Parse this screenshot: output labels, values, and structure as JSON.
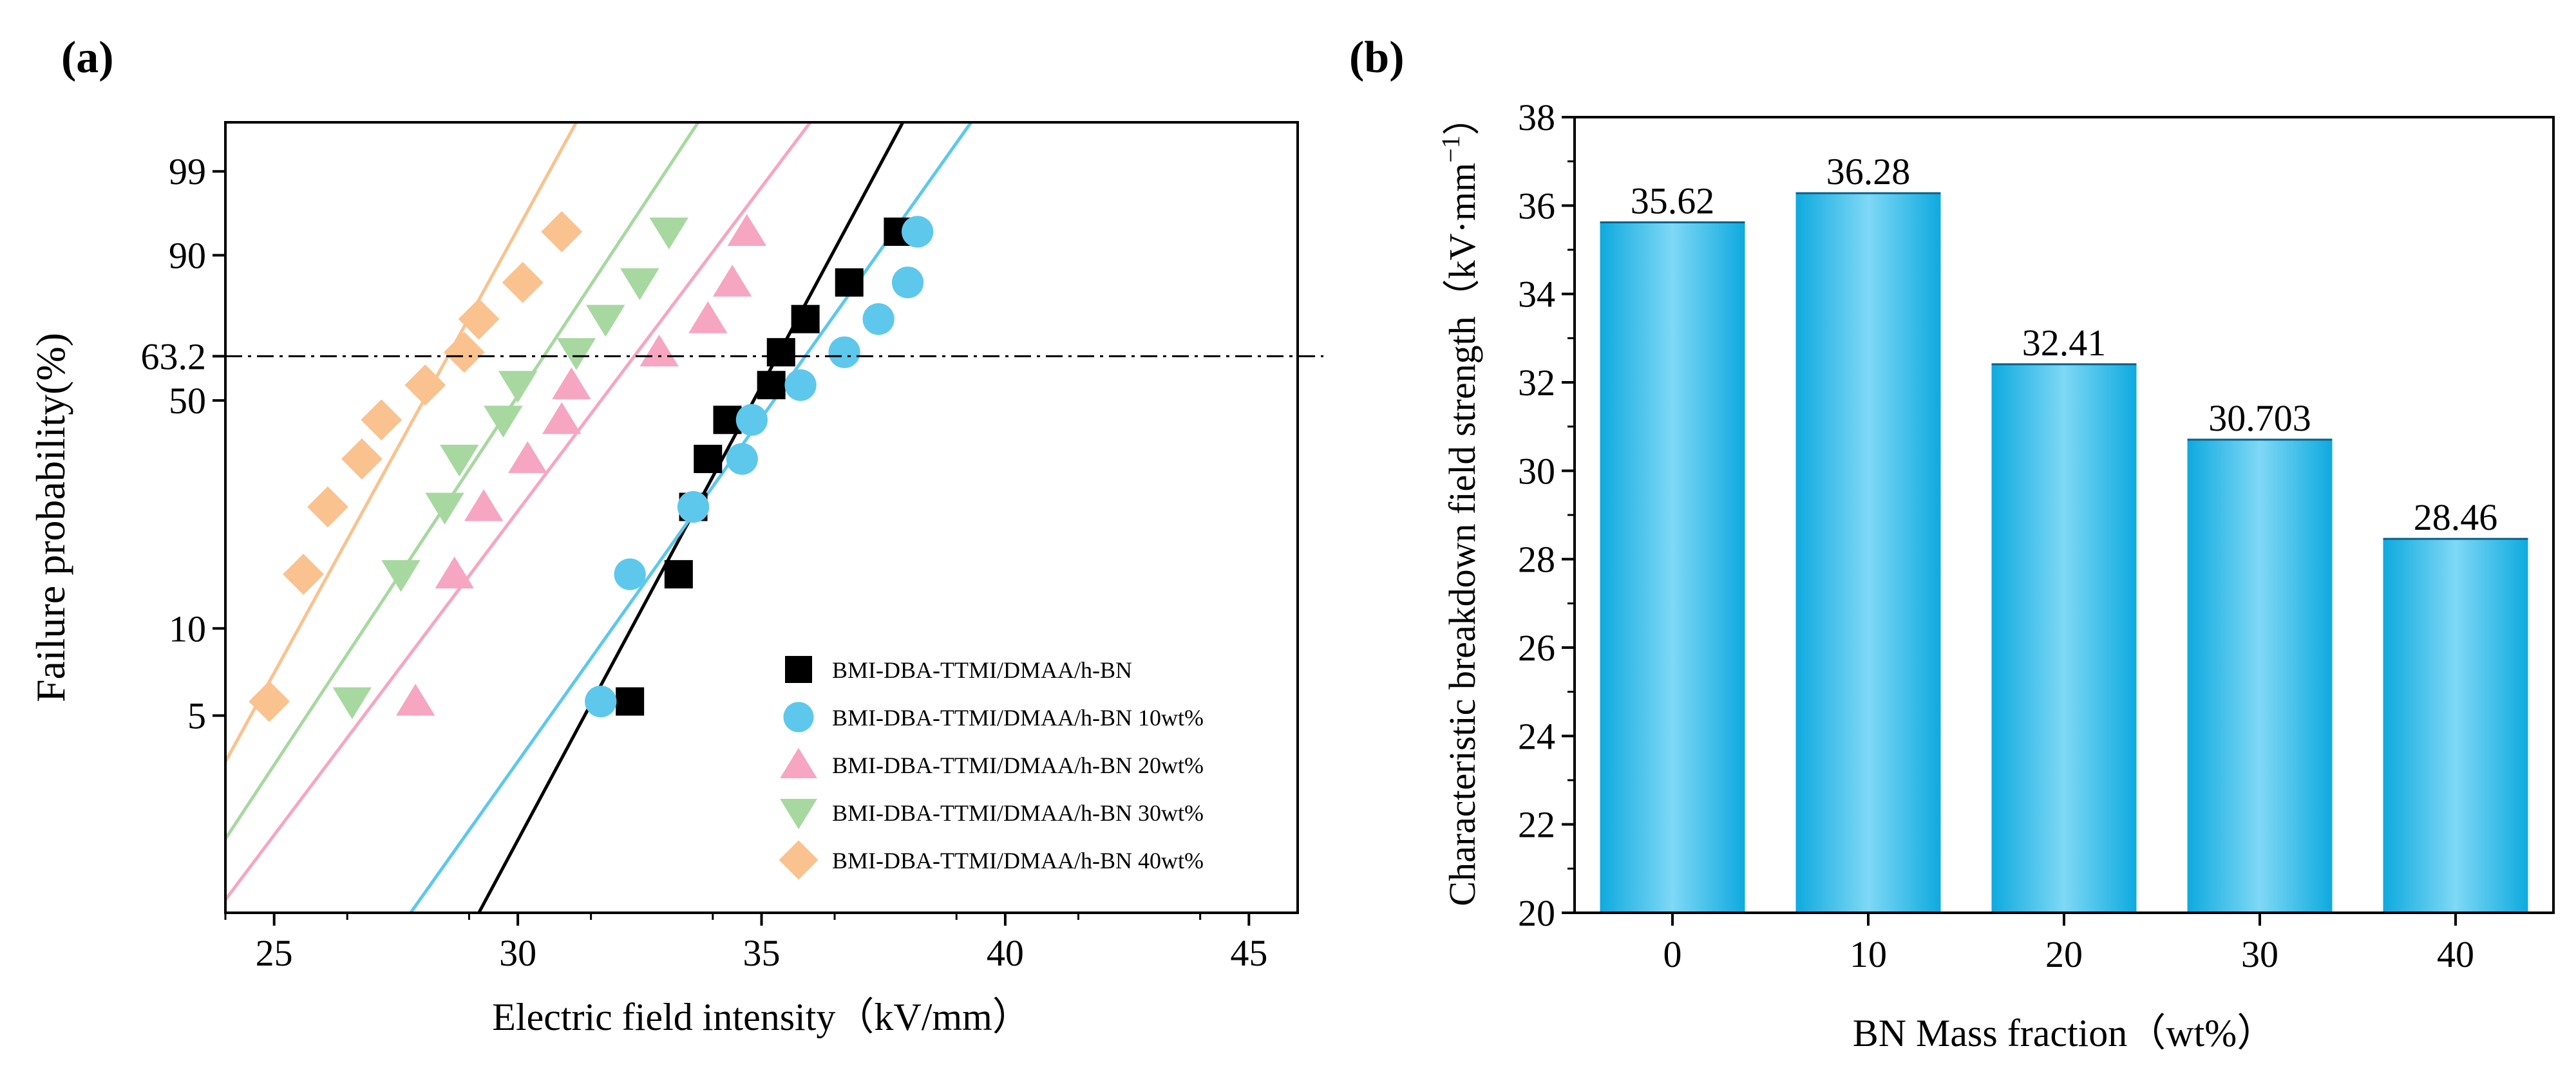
{
  "chart_data": [
    {
      "type": "scatter",
      "panel_label": "(a)",
      "xlabel": "Electric field intensity（kV/mm）",
      "ylabel": "Failure probability(%)",
      "xlim": [
        24,
        46
      ],
      "xticks": [
        25,
        30,
        35,
        40,
        45
      ],
      "ytick_labels": [
        "5",
        "10",
        "50",
        "63.2",
        "90",
        "99"
      ],
      "ytick_values": [
        5,
        10,
        50,
        63.2,
        90,
        99
      ],
      "reference_line": 63.2,
      "grid": false,
      "legend_position": "lower-right",
      "series": [
        {
          "name": "BMI-DBA-TTMI/DMAA/h-BN",
          "marker": "square",
          "color": "#000000",
          "x": [
            32.3,
            33.3,
            33.6,
            33.9,
            34.3,
            35.2,
            35.4,
            35.9,
            36.8,
            37.8
          ],
          "y": [
            5.6,
            15.2,
            25.0,
            34.8,
            44.6,
            54.5,
            64.4,
            74.3,
            84.1,
            93.9
          ],
          "fit": [
            [
              29.2,
              1.0
            ],
            [
              37.9,
              99.9
            ]
          ]
        },
        {
          "name": "BMI-DBA-TTMI/DMAA/h-BN 10wt%",
          "marker": "circle",
          "color": "#5dc8ec",
          "x": [
            31.7,
            32.3,
            33.6,
            34.6,
            34.8,
            35.8,
            36.7,
            37.4,
            38.0,
            38.2
          ],
          "y": [
            5.6,
            15.2,
            25.0,
            34.8,
            44.6,
            54.5,
            64.4,
            74.3,
            84.1,
            93.9
          ],
          "fit": [
            [
              27.8,
              1.0
            ],
            [
              39.3,
              99.9
            ]
          ]
        },
        {
          "name": "BMI-DBA-TTMI/DMAA/h-BN 20wt%",
          "marker": "triangle-up",
          "color": "#f6a6c1",
          "x": [
            27.9,
            28.7,
            29.3,
            30.2,
            30.9,
            31.1,
            32.9,
            33.9,
            34.4,
            34.7
          ],
          "y": [
            5.6,
            15.2,
            25.0,
            34.8,
            44.6,
            54.5,
            64.4,
            74.3,
            84.1,
            93.9
          ],
          "fit": [
            [
              23.8,
              1.0
            ],
            [
              36.0,
              99.9
            ]
          ]
        },
        {
          "name": "BMI-DBA-TTMI/DMAA/h-BN 30wt%",
          "marker": "triangle-down",
          "color": "#a7d8a0",
          "x": [
            26.6,
            27.6,
            28.5,
            28.8,
            29.7,
            30.0,
            31.2,
            31.8,
            32.5,
            33.1
          ],
          "y": [
            5.6,
            15.2,
            25.0,
            34.8,
            44.6,
            54.5,
            64.4,
            74.3,
            84.1,
            93.9
          ],
          "fit": [
            [
              23.0,
              1.0
            ],
            [
              33.7,
              99.9
            ]
          ]
        },
        {
          "name": "BMI-DBA-TTMI/DMAA/h-BN 40wt%",
          "marker": "diamond",
          "color": "#f9c28f",
          "x": [
            24.9,
            25.6,
            26.1,
            26.8,
            27.2,
            28.1,
            28.9,
            29.2,
            30.1,
            30.9
          ],
          "y": [
            5.6,
            15.2,
            25.0,
            34.8,
            44.6,
            54.5,
            64.4,
            74.3,
            84.1,
            93.9
          ],
          "fit": [
            [
              22.3,
              1.0
            ],
            [
              31.2,
              99.9
            ]
          ]
        }
      ]
    },
    {
      "type": "bar",
      "panel_label": "(b)",
      "xlabel": "BN Mass fraction（wt%）",
      "ylabel": "Characteristic breakdown field strength（kV·mm",
      "ylabel_sup": "−1",
      "ylabel_close": "）",
      "categories": [
        "0",
        "10",
        "20",
        "30",
        "40"
      ],
      "values": [
        35.62,
        36.28,
        32.41,
        30.703,
        28.46
      ],
      "value_labels": [
        "35.62",
        "36.28",
        "32.41",
        "30.703",
        "28.46"
      ],
      "ylim": [
        20,
        38
      ],
      "yticks": [
        20,
        22,
        24,
        26,
        28,
        30,
        32,
        34,
        36,
        38
      ],
      "bar_color": "#0eaadf",
      "bar_highlight": "#7fd8f6"
    }
  ]
}
